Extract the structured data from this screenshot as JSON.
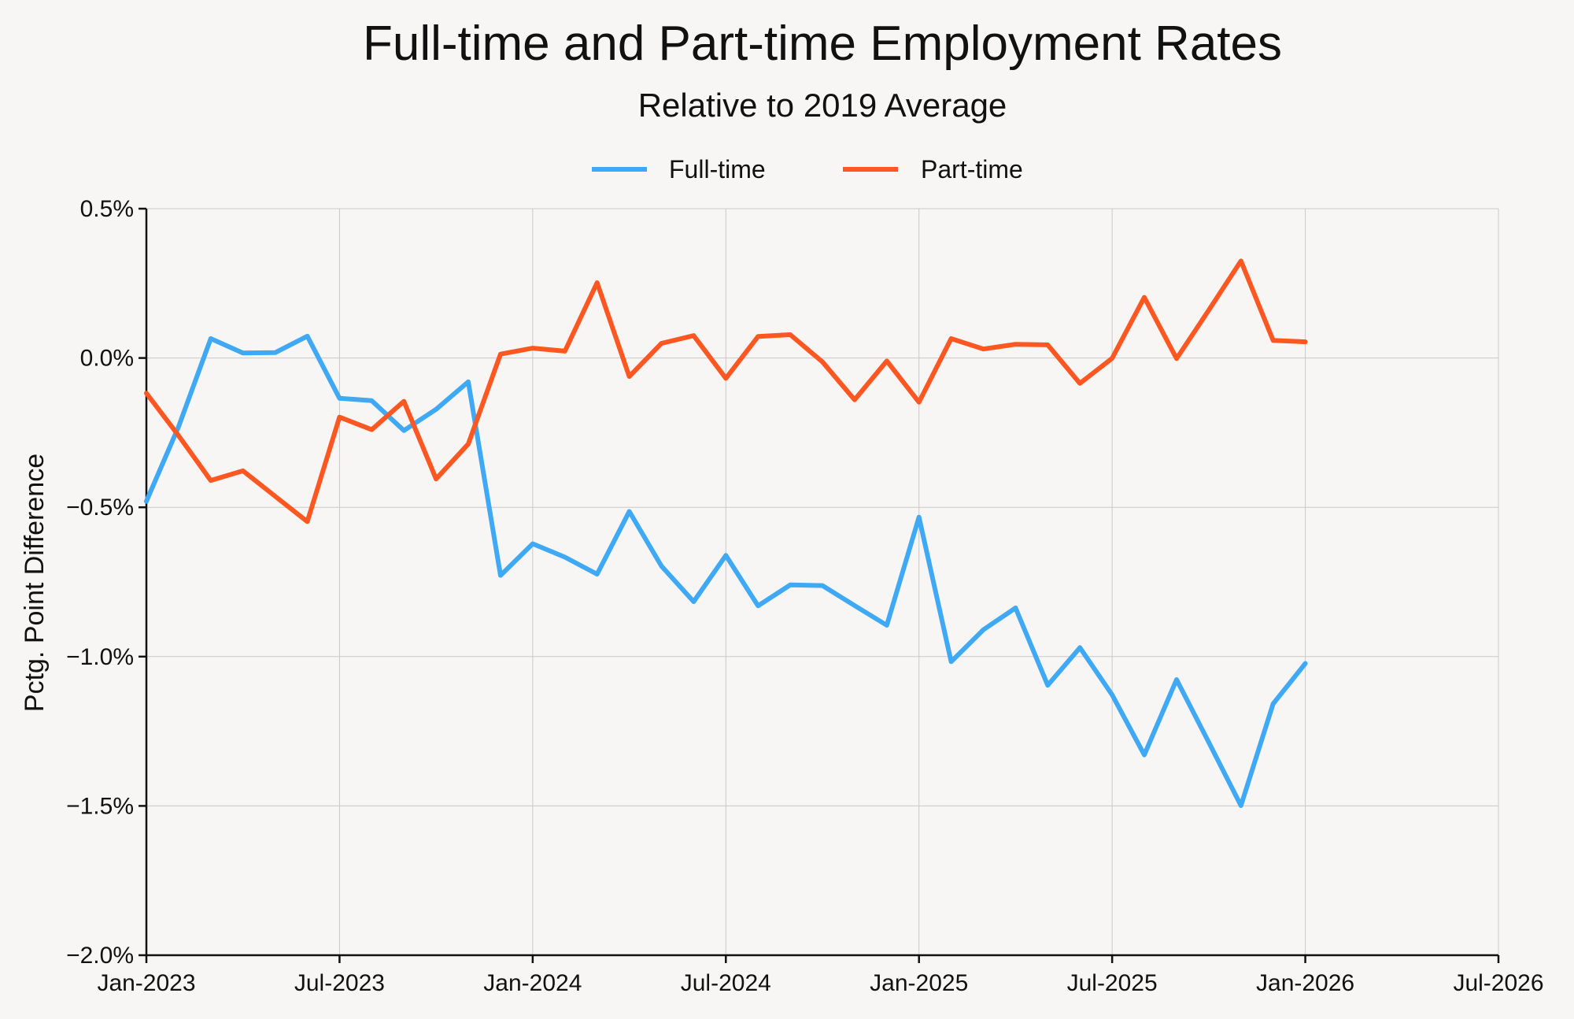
{
  "chart_data": {
    "type": "line",
    "title": "Full-time and Part-time Employment Rates",
    "subtitle": "Relative to 2019 Average",
    "xlabel": "",
    "ylabel": "Pctg. Point Difference",
    "ylim": [
      -2.0,
      0.5
    ],
    "xlim_month_index": [
      0,
      42
    ],
    "y_ticks": [
      0.5,
      0.0,
      -0.5,
      -1.0,
      -1.5,
      -2.0
    ],
    "y_tick_labels": [
      "0.5%",
      "0.0%",
      "−0.5%",
      "−1.0%",
      "−1.5%",
      "−2.0%"
    ],
    "x_ticks": [
      0,
      6,
      12,
      18,
      24,
      30,
      36,
      42
    ],
    "x_tick_labels": [
      "Jan-2023",
      "Jul-2023",
      "Jan-2024",
      "Jul-2024",
      "Jan-2025",
      "Jul-2025",
      "Jan-2026",
      "Jul-2026"
    ],
    "legend_position": "top-center",
    "grid": true,
    "x_month_index": [
      0,
      1,
      2,
      3,
      4,
      5,
      6,
      7,
      8,
      9,
      10,
      11,
      12,
      13,
      14,
      15,
      16,
      17,
      18,
      19,
      20,
      21,
      22,
      23,
      24,
      25,
      26,
      27,
      28,
      29,
      30,
      31,
      32,
      33,
      34,
      35,
      36
    ],
    "series": [
      {
        "name": "Full-time",
        "color": "#3fa9f5",
        "values": [
          -0.48,
          -0.23,
          0.065,
          0.017,
          0.018,
          0.073,
          -0.135,
          -0.143,
          -0.243,
          -0.172,
          -0.08,
          -0.728,
          -0.622,
          -0.667,
          -0.724,
          -0.514,
          -0.697,
          -0.816,
          -0.661,
          -0.83,
          -0.76,
          -0.762,
          -0.829,
          -0.895,
          -0.533,
          -1.017,
          -0.91,
          -0.837,
          -1.096,
          -0.97,
          -1.128,
          -1.329,
          -1.077,
          -1.287,
          -1.499,
          -1.158,
          -1.023
        ]
      },
      {
        "name": "Part-time",
        "color": "#ff5722",
        "values": [
          -0.118,
          -0.26,
          -0.41,
          -0.378,
          -0.463,
          -0.548,
          -0.198,
          -0.24,
          -0.145,
          -0.405,
          -0.288,
          0.013,
          0.033,
          0.023,
          0.252,
          -0.062,
          0.049,
          0.075,
          -0.068,
          0.072,
          0.078,
          -0.013,
          -0.14,
          -0.01,
          -0.148,
          0.065,
          0.03,
          0.046,
          0.044,
          -0.085,
          -0.001,
          0.203,
          -0.002,
          0.16,
          0.325,
          0.059,
          0.054
        ]
      }
    ]
  }
}
